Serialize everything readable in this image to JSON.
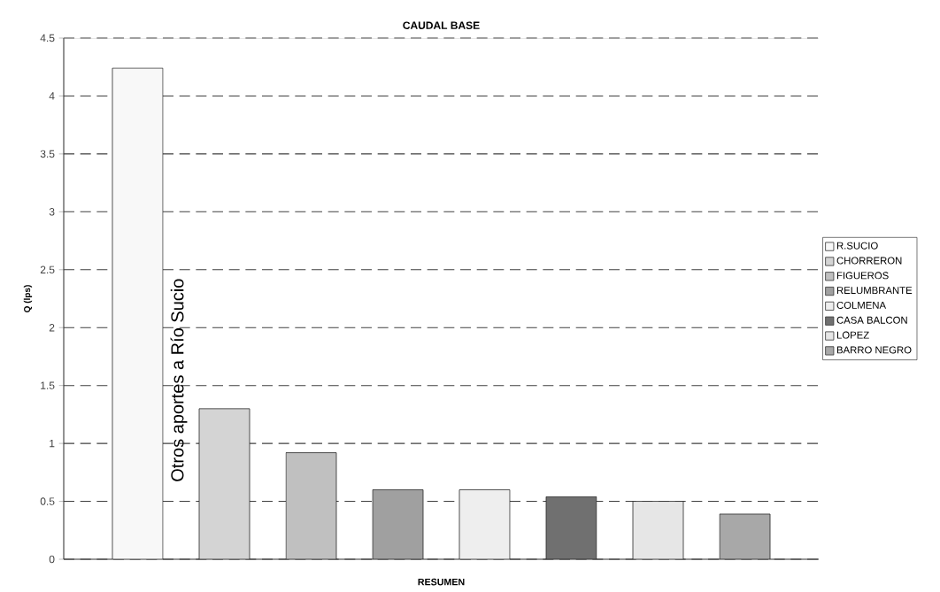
{
  "chart_data": {
    "type": "bar",
    "title": "CAUDAL BASE",
    "xlabel": "RESUMEN",
    "ylabel": "Q (lps)",
    "categories": [
      null
    ],
    "series": [
      {
        "name": "R.SUCIO",
        "color": "#f8f8f8",
        "values": [
          4.24
        ]
      },
      {
        "name": "CHORRERON",
        "color": "#d4d4d4",
        "values": [
          1.3
        ]
      },
      {
        "name": "FIGUEROS",
        "color": "#c0c0c0",
        "values": [
          0.92
        ]
      },
      {
        "name": "RELUMBRANTE",
        "color": "#a0a0a0",
        "values": [
          0.6
        ]
      },
      {
        "name": "COLMENA",
        "color": "#eeeeee",
        "values": [
          0.6
        ]
      },
      {
        "name": "CASA BALCON",
        "color": "#707070",
        "values": [
          0.54
        ]
      },
      {
        "name": "LOPEZ",
        "color": "#e6e6e6",
        "values": [
          0.5
        ]
      },
      {
        "name": "BARRO NEGRO",
        "color": "#a8a8a8",
        "values": [
          0.39
        ]
      }
    ],
    "ylim": [
      0,
      4.5
    ],
    "yticks": [
      0,
      0.5,
      1,
      1.5,
      2,
      2.5,
      3,
      3.5,
      4,
      4.5
    ],
    "grid": "y",
    "legend": "right",
    "annotations": [
      "Otros aportes a Río Sucio"
    ]
  }
}
